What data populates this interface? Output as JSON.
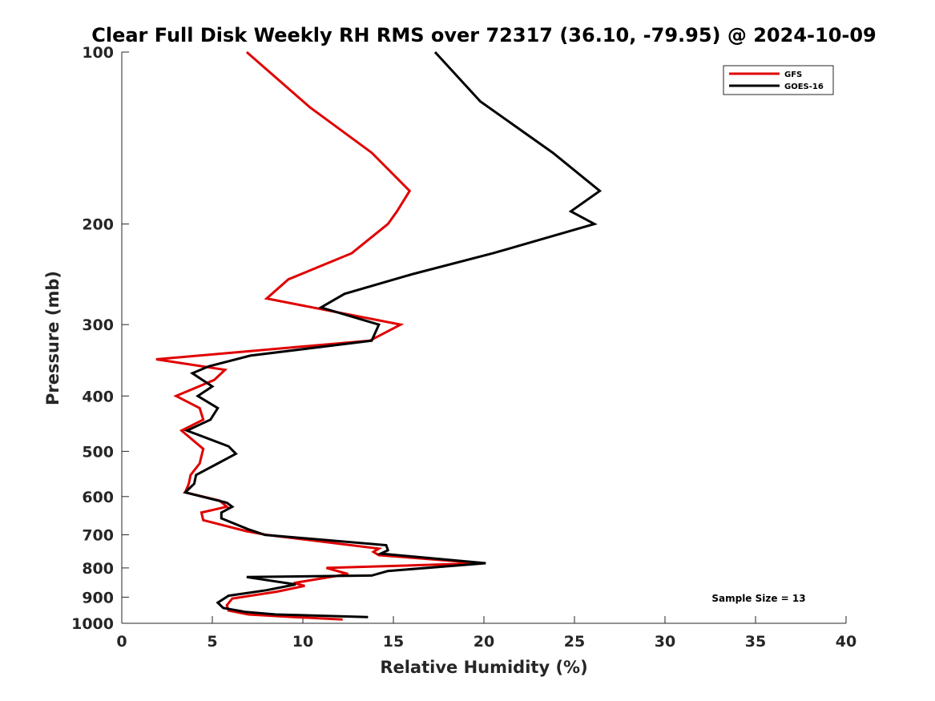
{
  "chart_data": {
    "type": "line",
    "title": "Clear Full Disk Weekly RH RMS over 72317 (36.10, -79.95) @ 2024-10-09",
    "xlabel": "Relative Humidity (%)",
    "ylabel": "Pressure (mb)",
    "xlim": [
      0,
      40
    ],
    "ylim": [
      100,
      1000
    ],
    "yscale": "log",
    "yreversed": true,
    "xticks": [
      0,
      5,
      10,
      15,
      20,
      25,
      30,
      35,
      40
    ],
    "yticks": [
      100,
      200,
      300,
      400,
      500,
      600,
      700,
      800,
      900,
      1000
    ],
    "grid": false,
    "legend_position": "top-right",
    "annotation": "Sample Size = 13",
    "series": [
      {
        "name": "GFS",
        "color": "#e00000",
        "points": [
          [
            6.9,
            100
          ],
          [
            10.4,
            125
          ],
          [
            13.8,
            150
          ],
          [
            15.9,
            175
          ],
          [
            15.2,
            190
          ],
          [
            14.7,
            200
          ],
          [
            12.7,
            225
          ],
          [
            9.2,
            250
          ],
          [
            8.0,
            270
          ],
          [
            15.4,
            300
          ],
          [
            13.7,
            320
          ],
          [
            1.9,
            345
          ],
          [
            5.7,
            360
          ],
          [
            5.1,
            375
          ],
          [
            3.0,
            400
          ],
          [
            4.3,
            420
          ],
          [
            4.5,
            440
          ],
          [
            3.3,
            460
          ],
          [
            4.5,
            495
          ],
          [
            4.4,
            510
          ],
          [
            4.3,
            525
          ],
          [
            3.8,
            550
          ],
          [
            3.7,
            570
          ],
          [
            3.5,
            590
          ],
          [
            5.4,
            610
          ],
          [
            5.8,
            625
          ],
          [
            4.4,
            640
          ],
          [
            4.5,
            660
          ],
          [
            6.9,
            690
          ],
          [
            8.0,
            700
          ],
          [
            14.2,
            740
          ],
          [
            13.9,
            750
          ],
          [
            14.2,
            760
          ],
          [
            19.9,
            785
          ],
          [
            11.3,
            800
          ],
          [
            12.5,
            820
          ],
          [
            9.5,
            850
          ],
          [
            10.1,
            860
          ],
          [
            8.6,
            880
          ],
          [
            6.1,
            905
          ],
          [
            5.8,
            930
          ],
          [
            5.9,
            950
          ],
          [
            7.0,
            965
          ],
          [
            9.5,
            975
          ],
          [
            12.2,
            985
          ]
        ]
      },
      {
        "name": "GOES-16",
        "color": "#000000",
        "points": [
          [
            17.3,
            100
          ],
          [
            19.8,
            122
          ],
          [
            23.8,
            150
          ],
          [
            26.4,
            175
          ],
          [
            24.8,
            190
          ],
          [
            26.1,
            200
          ],
          [
            20.5,
            225
          ],
          [
            16.0,
            245
          ],
          [
            12.3,
            265
          ],
          [
            11.0,
            280
          ],
          [
            14.2,
            300
          ],
          [
            13.8,
            320
          ],
          [
            7.1,
            340
          ],
          [
            4.8,
            355
          ],
          [
            3.9,
            365
          ],
          [
            5.0,
            385
          ],
          [
            4.2,
            400
          ],
          [
            5.3,
            420
          ],
          [
            4.9,
            440
          ],
          [
            3.6,
            460
          ],
          [
            5.9,
            490
          ],
          [
            6.3,
            505
          ],
          [
            5.3,
            525
          ],
          [
            4.1,
            550
          ],
          [
            4.0,
            570
          ],
          [
            3.5,
            590
          ],
          [
            5.8,
            615
          ],
          [
            6.1,
            625
          ],
          [
            5.5,
            640
          ],
          [
            5.5,
            655
          ],
          [
            7.0,
            685
          ],
          [
            7.9,
            700
          ],
          [
            14.6,
            730
          ],
          [
            14.7,
            745
          ],
          [
            14.3,
            755
          ],
          [
            20.1,
            785
          ],
          [
            14.7,
            810
          ],
          [
            13.8,
            825
          ],
          [
            6.9,
            830
          ],
          [
            9.6,
            855
          ],
          [
            8.0,
            875
          ],
          [
            5.9,
            895
          ],
          [
            5.3,
            920
          ],
          [
            5.6,
            940
          ],
          [
            6.8,
            955
          ],
          [
            8.5,
            965
          ],
          [
            13.6,
            975
          ]
        ]
      }
    ]
  }
}
